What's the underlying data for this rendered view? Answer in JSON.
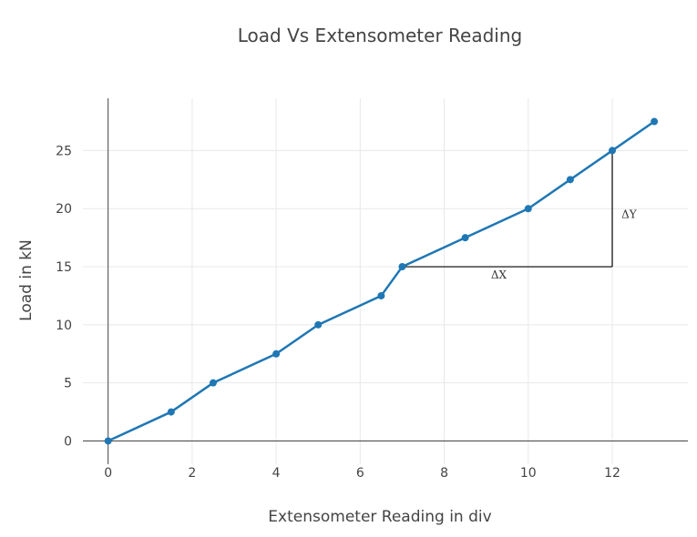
{
  "chart_data": {
    "type": "line",
    "title": "Load Vs Extensometer Reading",
    "xlabel": "Extensometer Reading in div",
    "ylabel": "Load in kN",
    "xlim": [
      -0.6,
      13.8
    ],
    "ylim": [
      -2,
      29.5
    ],
    "xticks": [
      0,
      2,
      4,
      6,
      8,
      10,
      12
    ],
    "yticks": [
      0,
      5,
      10,
      15,
      20,
      25
    ],
    "grid": true,
    "series": [
      {
        "x": [
          0,
          1.5,
          2.5,
          4,
          5,
          6.5,
          7,
          8.5,
          10,
          11,
          12,
          13
        ],
        "y": [
          0,
          2.5,
          5,
          7.5,
          10,
          12.5,
          15,
          17.5,
          20,
          22.5,
          25,
          27.5
        ],
        "color": "#1f77b4"
      }
    ],
    "annotations": [
      {
        "text": "ΔX",
        "x": 9.3,
        "y": 14.3
      },
      {
        "text": "ΔY",
        "x": 12.4,
        "y": 19.5
      }
    ],
    "guide_lines": [
      {
        "x": [
          7,
          12
        ],
        "y": [
          15,
          15
        ]
      },
      {
        "x": [
          12,
          12
        ],
        "y": [
          15,
          25
        ]
      }
    ]
  }
}
